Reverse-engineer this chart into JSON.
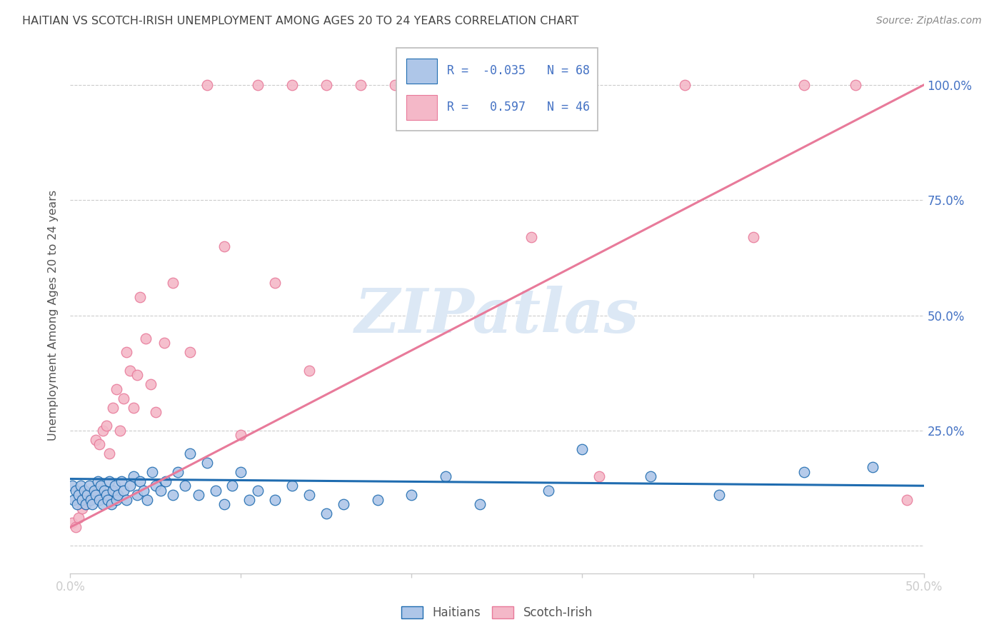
{
  "title": "HAITIAN VS SCOTCH-IRISH UNEMPLOYMENT AMONG AGES 20 TO 24 YEARS CORRELATION CHART",
  "source": "Source: ZipAtlas.com",
  "ylabel": "Unemployment Among Ages 20 to 24 years",
  "xlim": [
    0.0,
    0.5
  ],
  "ylim": [
    -0.06,
    1.06
  ],
  "xticks": [
    0.0,
    0.1,
    0.2,
    0.3,
    0.4,
    0.5
  ],
  "xticklabels": [
    "0.0%",
    "",
    "",
    "",
    "",
    "50.0%"
  ],
  "yticks": [
    0.0,
    0.25,
    0.5,
    0.75,
    1.0
  ],
  "yticklabels": [
    "",
    "25.0%",
    "50.0%",
    "75.0%",
    "100.0%"
  ],
  "haitians_R": -0.035,
  "haitians_N": 68,
  "scotch_irish_R": 0.597,
  "scotch_irish_N": 46,
  "haitians_color": "#aec6e8",
  "scotch_irish_color": "#f4b8c8",
  "haitians_line_color": "#1f6cb0",
  "scotch_irish_line_color": "#e87a9a",
  "watermark_text": "ZIPatlas",
  "watermark_color": "#dce8f5",
  "grid_color": "#cccccc",
  "title_color": "#444444",
  "axis_label_color": "#555555",
  "tick_color": "#4472c4",
  "legend_text_color": "#4472c4",
  "source_color": "#888888",
  "haitians_x": [
    0.001,
    0.002,
    0.003,
    0.004,
    0.005,
    0.006,
    0.007,
    0.008,
    0.009,
    0.01,
    0.011,
    0.012,
    0.013,
    0.014,
    0.015,
    0.016,
    0.017,
    0.018,
    0.019,
    0.02,
    0.021,
    0.022,
    0.023,
    0.024,
    0.025,
    0.026,
    0.027,
    0.028,
    0.03,
    0.031,
    0.033,
    0.035,
    0.037,
    0.039,
    0.041,
    0.043,
    0.045,
    0.048,
    0.05,
    0.053,
    0.056,
    0.06,
    0.063,
    0.067,
    0.07,
    0.075,
    0.08,
    0.085,
    0.09,
    0.095,
    0.1,
    0.105,
    0.11,
    0.12,
    0.13,
    0.14,
    0.15,
    0.16,
    0.18,
    0.2,
    0.22,
    0.24,
    0.28,
    0.3,
    0.34,
    0.38,
    0.43,
    0.47
  ],
  "haitians_y": [
    0.13,
    0.1,
    0.12,
    0.09,
    0.11,
    0.13,
    0.1,
    0.12,
    0.09,
    0.11,
    0.13,
    0.1,
    0.09,
    0.12,
    0.11,
    0.14,
    0.1,
    0.13,
    0.09,
    0.12,
    0.11,
    0.1,
    0.14,
    0.09,
    0.12,
    0.13,
    0.1,
    0.11,
    0.14,
    0.12,
    0.1,
    0.13,
    0.15,
    0.11,
    0.14,
    0.12,
    0.1,
    0.16,
    0.13,
    0.12,
    0.14,
    0.11,
    0.16,
    0.13,
    0.2,
    0.11,
    0.18,
    0.12,
    0.09,
    0.13,
    0.16,
    0.1,
    0.12,
    0.1,
    0.13,
    0.11,
    0.07,
    0.09,
    0.1,
    0.11,
    0.15,
    0.09,
    0.12,
    0.21,
    0.15,
    0.11,
    0.16,
    0.17
  ],
  "scotch_x": [
    0.001,
    0.003,
    0.005,
    0.007,
    0.009,
    0.011,
    0.013,
    0.015,
    0.017,
    0.019,
    0.021,
    0.023,
    0.025,
    0.027,
    0.029,
    0.031,
    0.033,
    0.035,
    0.037,
    0.039,
    0.041,
    0.044,
    0.047,
    0.05,
    0.055,
    0.06,
    0.07,
    0.08,
    0.09,
    0.1,
    0.11,
    0.12,
    0.13,
    0.14,
    0.15,
    0.17,
    0.19,
    0.21,
    0.24,
    0.27,
    0.31,
    0.36,
    0.4,
    0.43,
    0.46,
    0.49
  ],
  "scotch_y": [
    0.05,
    0.04,
    0.06,
    0.08,
    0.09,
    0.1,
    0.11,
    0.23,
    0.22,
    0.25,
    0.26,
    0.2,
    0.3,
    0.34,
    0.25,
    0.32,
    0.42,
    0.38,
    0.3,
    0.37,
    0.54,
    0.45,
    0.35,
    0.29,
    0.44,
    0.57,
    0.42,
    1.0,
    0.65,
    0.24,
    1.0,
    0.57,
    1.0,
    0.38,
    1.0,
    1.0,
    1.0,
    1.0,
    1.0,
    0.67,
    0.15,
    1.0,
    0.67,
    1.0,
    1.0,
    0.1
  ],
  "haitian_line_x0": 0.0,
  "haitian_line_x1": 0.5,
  "haitian_line_y0": 0.145,
  "haitian_line_y1": 0.13,
  "scotch_line_x0": 0.0,
  "scotch_line_x1": 0.5,
  "scotch_line_y0": 0.04,
  "scotch_line_y1": 1.0
}
